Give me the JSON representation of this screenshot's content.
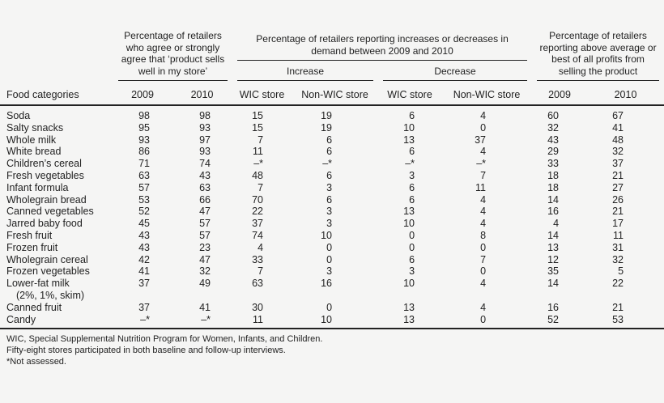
{
  "page": {
    "background": "#f5f5f4",
    "text_color": "#222222",
    "rule_color": "#222222"
  },
  "table": {
    "corner_header": "Food categories",
    "groups": {
      "sells_well": "Percentage of retailers who agree or strongly agree that ‘product sells well in my store’",
      "demand": "Percentage of retailers reporting increases or decreases in demand between 2009 and 2010",
      "increase": "Increase",
      "decrease": "Decrease",
      "profits": "Percentage of retailers reporting above average or best of all profits from selling the product"
    },
    "sub_columns": {
      "sells_2009": "2009",
      "sells_2010": "2010",
      "inc_wic": "WIC store",
      "inc_nonwic": "Non-WIC store",
      "dec_wic": "WIC store",
      "dec_nonwic": "Non-WIC store",
      "profit_2009": "2009",
      "profit_2010": "2010"
    },
    "rows": [
      {
        "label": "Soda",
        "values": [
          "98",
          "98",
          "15",
          "19",
          "6",
          "4",
          "60",
          "67"
        ]
      },
      {
        "label": "Salty snacks",
        "values": [
          "95",
          "93",
          "15",
          "19",
          "10",
          "0",
          "32",
          "41"
        ]
      },
      {
        "label": "Whole milk",
        "values": [
          "93",
          "97",
          "7",
          "6",
          "13",
          "37",
          "43",
          "48"
        ]
      },
      {
        "label": "White bread",
        "values": [
          "86",
          "93",
          "11",
          "6",
          "6",
          "4",
          "29",
          "32"
        ]
      },
      {
        "label": "Children’s cereal",
        "values": [
          "71",
          "74",
          "–*",
          "–*",
          "–*",
          "–*",
          "33",
          "37"
        ]
      },
      {
        "label": "Fresh vegetables",
        "values": [
          "63",
          "43",
          "48",
          "6",
          "3",
          "7",
          "18",
          "21"
        ]
      },
      {
        "label": "Infant formula",
        "values": [
          "57",
          "63",
          "7",
          "3",
          "6",
          "11",
          "18",
          "27"
        ]
      },
      {
        "label": "Wholegrain bread",
        "values": [
          "53",
          "66",
          "70",
          "6",
          "6",
          "4",
          "14",
          "26"
        ]
      },
      {
        "label": "Canned vegetables",
        "values": [
          "52",
          "47",
          "22",
          "3",
          "13",
          "4",
          "16",
          "21"
        ]
      },
      {
        "label": "Jarred baby food",
        "values": [
          "45",
          "57",
          "37",
          "3",
          "10",
          "4",
          "4",
          "17"
        ]
      },
      {
        "label": "Fresh fruit",
        "values": [
          "43",
          "57",
          "74",
          "10",
          "0",
          "8",
          "14",
          "11"
        ]
      },
      {
        "label": "Frozen fruit",
        "values": [
          "43",
          "23",
          "4",
          "0",
          "0",
          "0",
          "13",
          "31"
        ]
      },
      {
        "label": "Wholegrain cereal",
        "values": [
          "42",
          "47",
          "33",
          "0",
          "6",
          "7",
          "12",
          "32"
        ]
      },
      {
        "label": "Frozen vegetables",
        "values": [
          "41",
          "32",
          "7",
          "3",
          "3",
          "0",
          "35",
          "5"
        ]
      },
      {
        "label": "Lower-fat milk",
        "label2": "(2%, 1%, skim)",
        "values": [
          "37",
          "49",
          "63",
          "16",
          "10",
          "4",
          "14",
          "22"
        ]
      },
      {
        "label": "Canned fruit",
        "values": [
          "37",
          "41",
          "30",
          "0",
          "13",
          "4",
          "16",
          "21"
        ]
      },
      {
        "label": "Candy",
        "values": [
          "–*",
          "–*",
          "11",
          "10",
          "13",
          "0",
          "52",
          "53"
        ]
      }
    ],
    "footnotes": [
      "WIC, Special Supplemental Nutrition Program for Women, Infants, and Children.",
      "Fifty-eight stores participated in both baseline and follow-up interviews.",
      "*Not assessed."
    ]
  }
}
